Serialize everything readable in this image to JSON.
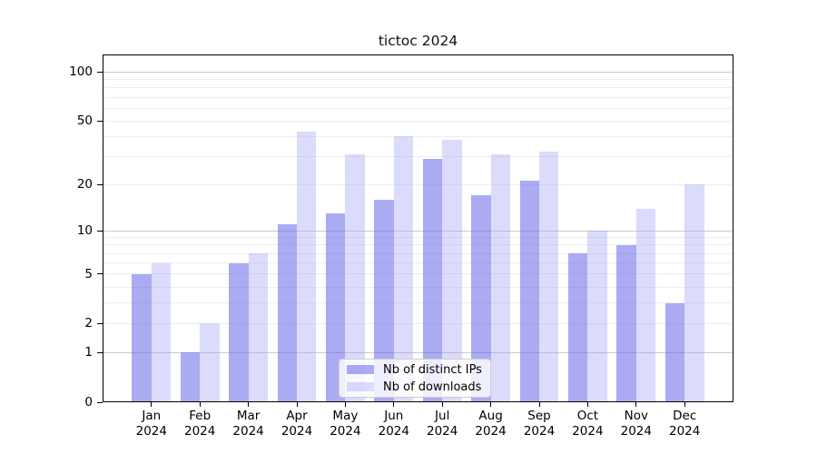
{
  "chart_data": {
    "type": "bar",
    "title": "tictoc 2024",
    "categories": [
      "Jan 2024",
      "Feb 2024",
      "Mar 2024",
      "Apr 2024",
      "May 2024",
      "Jun 2024",
      "Jul 2024",
      "Aug 2024",
      "Sep 2024",
      "Oct 2024",
      "Nov 2024",
      "Dec 2024"
    ],
    "series": [
      {
        "name": "Nb of distinct IPs",
        "values": [
          5,
          1,
          6,
          11,
          13,
          16,
          29,
          17,
          21,
          7,
          8,
          3
        ],
        "fill": "rgba(110,110,235,0.58)"
      },
      {
        "name": "Nb of downloads",
        "values": [
          6,
          2,
          7,
          43,
          31,
          40,
          38,
          31,
          32,
          10,
          14,
          20
        ],
        "fill": "rgba(165,165,245,0.40)"
      }
    ],
    "yscale": "symlog",
    "ylim": [
      0,
      128
    ],
    "y_tick_labels": [
      100,
      50,
      20,
      10,
      5,
      2,
      1,
      0
    ],
    "grid_major": [
      1,
      10,
      100
    ],
    "grid_minor": [
      2,
      3,
      4,
      5,
      6,
      7,
      8,
      9,
      20,
      30,
      40,
      50,
      60,
      70,
      80,
      90
    ],
    "grid": "on",
    "xlabel": "",
    "ylabel": "",
    "legend_position": "lower center",
    "axis_color": "#000000",
    "grid_major_color": "#c9c9c9",
    "grid_minor_color": "#ededed"
  }
}
